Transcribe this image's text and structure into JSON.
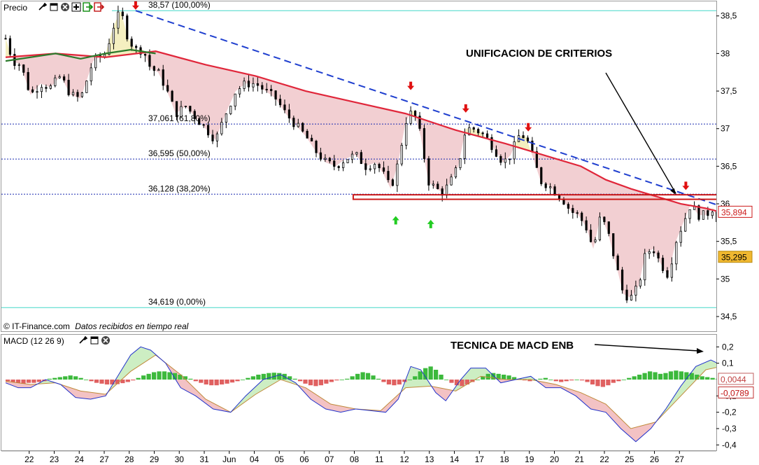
{
  "price_panel": {
    "title": "Precio",
    "copyright": "© IT-Finance.com",
    "feed_note": "Datos recibidos en tiempo real",
    "toolbar_icons": [
      "wrench-icon",
      "window-icon",
      "close-icon",
      "plus-icon",
      "export-icon",
      "export-alt-icon"
    ]
  },
  "macd_panel": {
    "title": "MACD (12 26 9)",
    "toolbar_icons": [
      "wrench-icon",
      "window-icon",
      "close-icon"
    ]
  },
  "annotations": {
    "criterios": "UNIFICACION DE CRITERIOS",
    "macd_note": "TECNICA DE MACD ENB"
  },
  "colors": {
    "ma_line": "#e0263a",
    "trendline": "#1f3fcf",
    "fib_line": "#1a2ab0",
    "fib_edge": "#43d7c8",
    "macd_line": "#2233cc",
    "signal_line": "#c08a3a",
    "hist_pos": "#3cb93c",
    "hist_neg": "#e06060",
    "arrow_down": "#e01010",
    "arrow_up": "#22cc22",
    "last_price": "#cc1a1a",
    "badge2": "#f0b830"
  },
  "chart_data": [
    {
      "type": "candlestick",
      "title": "Precio",
      "ylim": [
        34.5,
        38.6
      ],
      "yticks": [
        {
          "v": 38.5,
          "label": "38,5"
        },
        {
          "v": 38,
          "label": "38"
        },
        {
          "v": 37.5,
          "label": "37,5"
        },
        {
          "v": 37,
          "label": "37"
        },
        {
          "v": 36.5,
          "label": "36,5"
        },
        {
          "v": 36,
          "label": "36"
        },
        {
          "v": 35.5,
          "label": "35,5"
        },
        {
          "v": 35,
          "label": "35"
        },
        {
          "v": 34.5,
          "label": "34,5"
        }
      ],
      "x_labels": [
        "22",
        "23",
        "24",
        "27",
        "28",
        "29",
        "30",
        "31",
        "Jun",
        "04",
        "05",
        "06",
        "07",
        "08",
        "11",
        "12",
        "13",
        "14",
        "17",
        "18",
        "19",
        "20",
        "21",
        "22",
        "25",
        "26",
        "27"
      ],
      "fib_levels": [
        {
          "v": 38.57,
          "label": "38,57 (100,00%)"
        },
        {
          "v": 37.061,
          "label": "37,061 (61,80%)"
        },
        {
          "v": 36.595,
          "label": "36,595 (50,00%)"
        },
        {
          "v": 36.128,
          "label": "36,128 (38,20%)"
        },
        {
          "v": 34.619,
          "label": "34,619 (0,00%)"
        }
      ],
      "price_badges": [
        {
          "v": 35.894,
          "label": "35,894"
        },
        {
          "v": 35.295,
          "label": "35,295"
        }
      ],
      "price_path": [
        [
          0,
          38.2
        ],
        [
          0.3,
          37.9
        ],
        [
          0.6,
          37.85
        ],
        [
          1,
          37.45
        ],
        [
          1.4,
          37.6
        ],
        [
          1.8,
          37.55
        ],
        [
          2.2,
          37.7
        ],
        [
          2.6,
          37.45
        ],
        [
          3,
          37.4
        ],
        [
          3.5,
          37.9
        ],
        [
          4,
          38
        ],
        [
          4.3,
          38.35
        ],
        [
          4.6,
          38.57
        ],
        [
          4.9,
          38.2
        ],
        [
          5.2,
          38.05
        ],
        [
          5.5,
          38.05
        ],
        [
          5.8,
          37.8
        ],
        [
          6.1,
          37.75
        ],
        [
          6.4,
          37.55
        ],
        [
          6.8,
          37.2
        ],
        [
          7.2,
          37.3
        ],
        [
          7.6,
          37.15
        ],
        [
          8,
          37.0
        ],
        [
          8.4,
          36.85
        ],
        [
          8.8,
          37.2
        ],
        [
          9.2,
          37.5
        ],
        [
          9.6,
          37.6
        ],
        [
          10,
          37.6
        ],
        [
          10.4,
          37.5
        ],
        [
          10.8,
          37.4
        ],
        [
          11.2,
          37.2
        ],
        [
          11.6,
          37.05
        ],
        [
          12,
          36.9
        ],
        [
          12.4,
          36.7
        ],
        [
          12.8,
          36.55
        ],
        [
          13.2,
          36.5
        ],
        [
          13.6,
          36.6
        ],
        [
          14,
          36.65
        ],
        [
          14.4,
          36.5
        ],
        [
          14.8,
          36.55
        ],
        [
          15.1,
          36.4
        ],
        [
          15.4,
          36.2
        ],
        [
          15.7,
          36.55
        ],
        [
          16,
          37.1
        ],
        [
          16.3,
          37.25
        ],
        [
          16.6,
          36.9
        ],
        [
          16.9,
          36.3
        ],
        [
          17.2,
          36.2
        ],
        [
          17.5,
          36.15
        ],
        [
          17.8,
          36.3
        ],
        [
          18.1,
          36.5
        ],
        [
          18.4,
          37.0
        ],
        [
          18.7,
          37.0
        ],
        [
          19,
          36.95
        ],
        [
          19.3,
          36.85
        ],
        [
          19.6,
          36.7
        ],
        [
          19.9,
          36.55
        ],
        [
          20.2,
          36.65
        ],
        [
          20.5,
          36.9
        ],
        [
          20.8,
          36.9
        ],
        [
          21.1,
          36.6
        ],
        [
          21.4,
          36.3
        ],
        [
          21.7,
          36.25
        ],
        [
          22,
          36.15
        ],
        [
          22.3,
          36.05
        ],
        [
          22.6,
          35.9
        ],
        [
          22.9,
          35.85
        ],
        [
          23.2,
          35.7
        ],
        [
          23.5,
          35.4
        ],
        [
          23.8,
          35.85
        ],
        [
          24.1,
          35.6
        ],
        [
          24.4,
          35.2
        ],
        [
          24.7,
          34.8
        ],
        [
          25,
          34.75
        ],
        [
          25.3,
          34.9
        ],
        [
          25.6,
          35.35
        ],
        [
          25.9,
          35.4
        ],
        [
          26.2,
          35.2
        ],
        [
          26.5,
          35.05
        ],
        [
          26.8,
          35.5
        ],
        [
          27.1,
          35.75
        ],
        [
          27.4,
          36.0
        ],
        [
          27.7,
          35.85
        ],
        [
          28,
          35.85
        ],
        [
          28.3,
          35.95
        ],
        [
          28.6,
          35.65
        ]
      ],
      "ma_path": [
        [
          0,
          37.95
        ],
        [
          2,
          38.0
        ],
        [
          4,
          37.95
        ],
        [
          6,
          38.03
        ],
        [
          8,
          37.85
        ],
        [
          10,
          37.7
        ],
        [
          12,
          37.5
        ],
        [
          14,
          37.35
        ],
        [
          16,
          37.2
        ],
        [
          18,
          36.98
        ],
        [
          20,
          36.8
        ],
        [
          22,
          36.6
        ],
        [
          23,
          36.5
        ],
        [
          24,
          36.32
        ],
        [
          25,
          36.2
        ],
        [
          26,
          36.1
        ],
        [
          27,
          36.0
        ],
        [
          28,
          35.94
        ],
        [
          28.6,
          35.89
        ]
      ],
      "hl_path": [
        [
          0,
          37.9
        ],
        [
          1,
          37.95
        ],
        [
          2,
          38.0
        ],
        [
          3,
          37.93
        ],
        [
          4,
          38.0
        ],
        [
          5,
          38.05
        ],
        [
          6,
          38.0
        ]
      ],
      "trendline": [
        [
          5.2,
          38.57
        ],
        [
          28.5,
          35.98
        ]
      ],
      "support_box": {
        "x0": 13.9,
        "x1": 28.6,
        "y0": 36.06,
        "y1": 36.12
      },
      "down_arrows": [
        [
          5.2,
          38.62
        ],
        [
          16.2,
          37.55
        ],
        [
          18.4,
          37.25
        ],
        [
          20.9,
          37.0
        ],
        [
          27.2,
          36.22
        ]
      ],
      "up_arrows": [
        [
          15.6,
          35.8
        ],
        [
          17.0,
          35.75
        ]
      ]
    },
    {
      "type": "line",
      "title": "MACD (12 26 9)",
      "ylim": [
        -0.42,
        0.24
      ],
      "yticks": [
        {
          "v": 0.2,
          "label": "0,2"
        },
        {
          "v": 0.1,
          "label": "0,1"
        },
        {
          "v": -0.1,
          "label": "-0,1"
        },
        {
          "v": -0.2,
          "label": "-0,2"
        },
        {
          "v": -0.3,
          "label": "-0,3"
        },
        {
          "v": -0.4,
          "label": "-0,4"
        }
      ],
      "value_badges": [
        {
          "v": 0.0044,
          "label": "0,0044"
        },
        {
          "v": -0.0789,
          "label": "-0,0789"
        }
      ],
      "series": [
        {
          "key": "macd",
          "points": [
            [
              0,
              -0.02
            ],
            [
              0.5,
              -0.05
            ],
            [
              1,
              -0.05
            ],
            [
              1.6,
              0.0
            ],
            [
              2.2,
              -0.03
            ],
            [
              2.8,
              -0.11
            ],
            [
              3.4,
              -0.12
            ],
            [
              4,
              -0.1
            ],
            [
              4.6,
              0.05
            ],
            [
              5,
              0.15
            ],
            [
              5.4,
              0.2
            ],
            [
              5.8,
              0.18
            ],
            [
              6.4,
              0.1
            ],
            [
              7,
              -0.05
            ],
            [
              7.6,
              -0.1
            ],
            [
              8.3,
              -0.18
            ],
            [
              9,
              -0.2
            ],
            [
              9.6,
              -0.1
            ],
            [
              10.3,
              0.0
            ],
            [
              11,
              0.03
            ],
            [
              11.6,
              -0.02
            ],
            [
              12.2,
              -0.12
            ],
            [
              12.8,
              -0.18
            ],
            [
              13.4,
              -0.2
            ],
            [
              14,
              -0.18
            ],
            [
              14.6,
              -0.19
            ],
            [
              15.2,
              -0.2
            ],
            [
              15.7,
              -0.12
            ],
            [
              16.2,
              0.08
            ],
            [
              16.6,
              0.06
            ],
            [
              17.2,
              -0.08
            ],
            [
              17.6,
              -0.13
            ],
            [
              18.2,
              0.0
            ],
            [
              18.6,
              0.07
            ],
            [
              19.2,
              0.07
            ],
            [
              19.8,
              -0.02
            ],
            [
              20.4,
              0.0
            ],
            [
              21,
              0.02
            ],
            [
              21.6,
              -0.05
            ],
            [
              22.2,
              -0.05
            ],
            [
              22.8,
              -0.1
            ],
            [
              23.4,
              -0.18
            ],
            [
              24,
              -0.2
            ],
            [
              24.6,
              -0.3
            ],
            [
              25.2,
              -0.38
            ],
            [
              25.8,
              -0.3
            ],
            [
              26.4,
              -0.18
            ],
            [
              27,
              -0.04
            ],
            [
              27.6,
              0.08
            ],
            [
              28.2,
              0.12
            ],
            [
              28.6,
              0.09
            ]
          ]
        },
        {
          "key": "signal",
          "points": [
            [
              0,
              -0.01
            ],
            [
              1,
              -0.03
            ],
            [
              2,
              -0.02
            ],
            [
              3,
              -0.07
            ],
            [
              4,
              -0.09
            ],
            [
              5,
              0.05
            ],
            [
              6,
              0.15
            ],
            [
              7,
              0.03
            ],
            [
              8,
              -0.12
            ],
            [
              9,
              -0.2
            ],
            [
              10,
              -0.09
            ],
            [
              11,
              0.0
            ],
            [
              12,
              -0.05
            ],
            [
              13,
              -0.15
            ],
            [
              14,
              -0.18
            ],
            [
              15,
              -0.19
            ],
            [
              16,
              -0.05
            ],
            [
              17,
              -0.04
            ],
            [
              18,
              -0.07
            ],
            [
              19,
              0.02
            ],
            [
              20,
              0.0
            ],
            [
              21,
              0.0
            ],
            [
              22,
              -0.03
            ],
            [
              23,
              -0.08
            ],
            [
              24,
              -0.15
            ],
            [
              25,
              -0.3
            ],
            [
              26,
              -0.26
            ],
            [
              27,
              -0.1
            ],
            [
              28,
              0.06
            ],
            [
              28.6,
              0.08
            ]
          ]
        }
      ],
      "histogram": [
        -0.01,
        -0.015,
        -0.02,
        -0.025,
        -0.02,
        -0.02,
        -0.015,
        -0.01,
        0.005,
        0.01,
        0.015,
        0.02,
        0.025,
        0.02,
        0.01,
        0.0,
        -0.01,
        -0.02,
        -0.025,
        -0.03,
        -0.03,
        -0.028,
        -0.022,
        -0.015,
        -0.005,
        0.01,
        0.025,
        0.035,
        0.045,
        0.05,
        0.05,
        0.045,
        0.04,
        0.03,
        0.02,
        0.005,
        -0.01,
        -0.02,
        -0.03,
        -0.035,
        -0.035,
        -0.03,
        -0.025,
        -0.018,
        -0.01,
        0.0,
        0.01,
        0.02,
        0.03,
        0.035,
        0.04,
        0.042,
        0.04,
        0.035,
        0.02,
        0.005,
        -0.01,
        -0.025,
        -0.035,
        -0.04,
        -0.035,
        -0.025,
        -0.015,
        -0.005,
        0.0,
        0.005,
        0.02,
        0.035,
        0.045,
        0.04,
        0.025,
        0.005,
        -0.015,
        -0.03,
        -0.035,
        -0.03,
        -0.015,
        0.0,
        0.02,
        0.05,
        0.07,
        0.08,
        0.06,
        0.03,
        0.0,
        -0.02,
        -0.035,
        -0.04,
        -0.03,
        -0.015,
        0.0,
        0.02,
        0.035,
        0.04,
        0.035,
        0.03,
        0.025,
        0.015,
        0.005,
        -0.005,
        -0.01,
        0.0,
        0.005,
        0.01,
        0.0,
        -0.01,
        -0.015,
        -0.01,
        -0.005,
        0.0,
        -0.005,
        -0.015,
        -0.03,
        -0.04,
        -0.045,
        -0.035,
        -0.02,
        -0.01,
        0.0,
        0.01,
        0.02,
        0.03,
        0.04,
        0.05,
        0.045,
        0.035,
        0.04,
        0.05,
        0.055,
        0.05,
        0.045,
        0.04,
        0.03,
        0.02,
        0.015,
        0.01,
        0.005
      ]
    }
  ]
}
